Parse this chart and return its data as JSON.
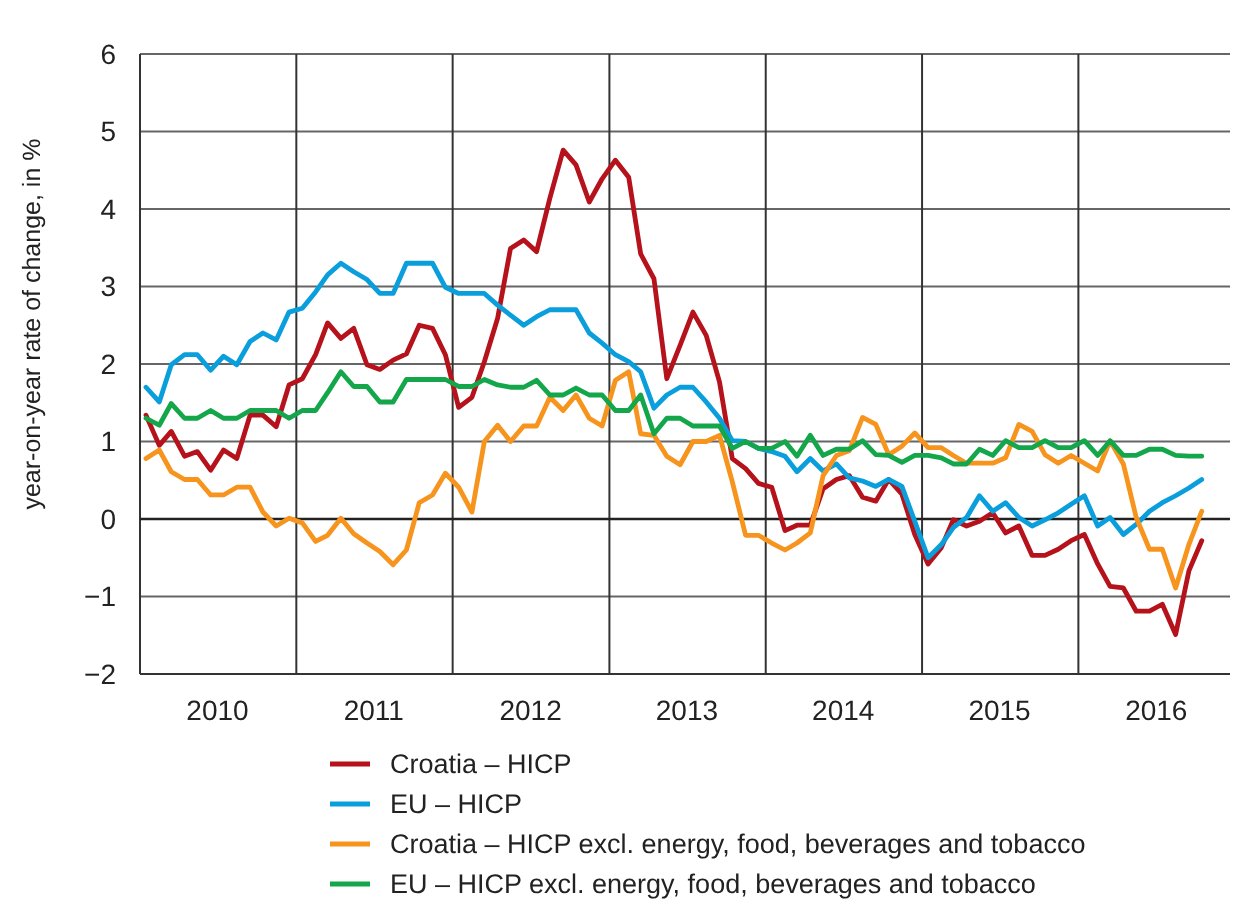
{
  "chart_data": {
    "type": "line",
    "ylabel": "year-on-year rate of change, in %",
    "x": [
      "2010-01-15",
      "2010-02-15",
      "2010-03-15",
      "2010-04-15",
      "2010-05-15",
      "2010-06-15",
      "2010-07-15",
      "2010-08-15",
      "2010-09-15",
      "2010-10-15",
      "2010-11-15",
      "2010-12-15",
      "2011-01-15",
      "2011-02-15",
      "2011-03-15",
      "2011-04-15",
      "2011-05-15",
      "2011-06-15",
      "2011-07-15",
      "2011-08-15",
      "2011-09-15",
      "2011-10-15",
      "2011-11-15",
      "2011-12-15",
      "2012-01-15",
      "2012-02-15",
      "2012-03-15",
      "2012-04-15",
      "2012-05-15",
      "2012-06-15",
      "2012-07-15",
      "2012-08-15",
      "2012-09-15",
      "2012-10-15",
      "2012-11-15",
      "2012-12-15",
      "2013-01-15",
      "2013-02-15",
      "2013-03-15",
      "2013-04-15",
      "2013-05-15",
      "2013-06-15",
      "2013-07-15",
      "2013-08-15",
      "2013-09-15",
      "2013-10-15",
      "2013-11-15",
      "2013-12-15",
      "2014-01-15",
      "2014-02-15",
      "2014-03-15",
      "2014-04-15",
      "2014-05-15",
      "2014-06-15",
      "2014-07-15",
      "2014-08-15",
      "2014-09-15",
      "2014-10-15",
      "2014-11-15",
      "2014-12-15",
      "2015-01-15",
      "2015-02-15",
      "2015-03-15",
      "2015-04-15",
      "2015-05-15",
      "2015-06-15",
      "2015-07-15",
      "2015-08-15",
      "2015-09-15",
      "2015-10-15",
      "2015-11-15",
      "2015-12-15",
      "2016-01-15",
      "2016-02-15",
      "2016-03-15",
      "2016-04-15",
      "2016-05-15",
      "2016-06-15",
      "2016-07-15",
      "2016-08-15",
      "2016-09-15",
      "2016-10-15"
    ],
    "xlim": [
      "2010-01-01",
      "2016-12-20"
    ],
    "xticks": [
      {
        "value": "2010-07-01",
        "label": "2010"
      },
      {
        "value": "2011-01-01",
        "label": null
      },
      {
        "value": "2011-07-01",
        "label": "2011"
      },
      {
        "value": "2012-01-01",
        "label": null
      },
      {
        "value": "2012-07-01",
        "label": "2012"
      },
      {
        "value": "2013-01-01",
        "label": null
      },
      {
        "value": "2013-07-01",
        "label": "2013"
      },
      {
        "value": "2014-01-01",
        "label": null
      },
      {
        "value": "2014-07-01",
        "label": "2014"
      },
      {
        "value": "2015-01-01",
        "label": null
      },
      {
        "value": "2015-07-01",
        "label": "2015"
      },
      {
        "value": "2016-01-01",
        "label": null
      },
      {
        "value": "2016-07-01",
        "label": "2016"
      }
    ],
    "ylim": [
      -2,
      6
    ],
    "yticks": [
      {
        "value": -2,
        "label": "−2"
      },
      {
        "value": -1,
        "label": "−1"
      },
      0,
      1,
      2,
      3,
      4,
      5,
      6
    ],
    "grid": true,
    "legend": "bottom",
    "marker": "none",
    "line_style": "solid",
    "series": [
      {
        "name": "Croatia – HICP",
        "color": "#b5121b",
        "values": [
          1.34,
          0.95,
          1.13,
          0.81,
          0.87,
          0.63,
          0.89,
          0.78,
          1.34,
          1.34,
          1.19,
          1.73,
          1.81,
          2.12,
          2.53,
          2.33,
          2.46,
          1.99,
          1.93,
          2.05,
          2.13,
          2.5,
          2.46,
          2.12,
          1.44,
          1.57,
          2.03,
          2.59,
          3.49,
          3.6,
          3.45,
          4.14,
          4.76,
          4.57,
          4.09,
          4.39,
          4.63,
          4.41,
          3.42,
          3.1,
          1.81,
          2.24,
          2.67,
          2.37,
          1.77,
          0.78,
          0.65,
          0.46,
          0.41,
          -0.15,
          -0.08,
          -0.08,
          0.39,
          0.51,
          0.56,
          0.28,
          0.23,
          0.51,
          0.32,
          -0.2,
          -0.58,
          -0.37,
          -0.01,
          -0.09,
          -0.03,
          0.08,
          -0.18,
          -0.09,
          -0.47,
          -0.47,
          -0.39,
          -0.28,
          -0.2,
          -0.58,
          -0.87,
          -0.89,
          -1.19,
          -1.19,
          -1.1,
          -1.49,
          -0.67,
          -0.28
        ]
      },
      {
        "name": "EU – HICP",
        "color": "#0a9fdc",
        "values": [
          1.7,
          1.51,
          1.99,
          2.12,
          2.12,
          1.92,
          2.1,
          1.99,
          2.29,
          2.4,
          2.31,
          2.67,
          2.72,
          2.93,
          3.15,
          3.3,
          3.19,
          3.09,
          2.91,
          2.91,
          3.3,
          3.3,
          3.3,
          2.99,
          2.91,
          2.91,
          2.91,
          2.76,
          2.63,
          2.5,
          2.61,
          2.7,
          2.7,
          2.7,
          2.4,
          2.27,
          2.12,
          2.03,
          1.9,
          1.43,
          1.6,
          1.7,
          1.7,
          1.51,
          1.3,
          1.01,
          1.0,
          0.91,
          0.87,
          0.81,
          0.61,
          0.78,
          0.62,
          0.71,
          0.53,
          0.49,
          0.42,
          0.51,
          0.42,
          -0.03,
          -0.5,
          -0.33,
          -0.11,
          0.02,
          0.3,
          0.1,
          0.21,
          0.02,
          -0.09,
          -0.01,
          0.08,
          0.19,
          0.3,
          -0.09,
          0.02,
          -0.2,
          -0.07,
          0.1,
          0.21,
          0.3,
          0.4,
          0.51
        ]
      },
      {
        "name": "Croatia – HICP excl. energy, food, beverages and tobacco",
        "color": "#f7941d",
        "values": [
          0.78,
          0.89,
          0.61,
          0.51,
          0.51,
          0.31,
          0.31,
          0.41,
          0.41,
          0.09,
          -0.09,
          0.01,
          -0.05,
          -0.29,
          -0.21,
          0.01,
          -0.19,
          -0.31,
          -0.42,
          -0.59,
          -0.4,
          0.21,
          0.31,
          0.59,
          0.41,
          0.09,
          1.0,
          1.21,
          1.0,
          1.2,
          1.2,
          1.57,
          1.4,
          1.6,
          1.3,
          1.2,
          1.79,
          1.9,
          1.1,
          1.08,
          0.81,
          0.7,
          1.0,
          1.0,
          1.08,
          0.48,
          -0.21,
          -0.21,
          -0.31,
          -0.4,
          -0.31,
          -0.18,
          0.56,
          0.82,
          0.88,
          1.31,
          1.22,
          0.83,
          0.94,
          1.11,
          0.92,
          0.92,
          0.82,
          0.72,
          0.72,
          0.72,
          0.79,
          1.22,
          1.13,
          0.83,
          0.72,
          0.82,
          0.72,
          0.62,
          1.01,
          0.71,
          0.02,
          -0.39,
          -0.39,
          -0.89,
          -0.33,
          0.1
        ]
      },
      {
        "name": "EU – HICP excl. energy, food, beverages and tobacco",
        "color": "#14a64a",
        "values": [
          1.3,
          1.21,
          1.49,
          1.3,
          1.3,
          1.4,
          1.3,
          1.3,
          1.4,
          1.4,
          1.4,
          1.3,
          1.4,
          1.4,
          1.63,
          1.9,
          1.71,
          1.71,
          1.51,
          1.51,
          1.8,
          1.8,
          1.8,
          1.8,
          1.71,
          1.71,
          1.8,
          1.73,
          1.7,
          1.7,
          1.79,
          1.6,
          1.6,
          1.69,
          1.6,
          1.6,
          1.4,
          1.4,
          1.6,
          1.1,
          1.3,
          1.3,
          1.2,
          1.2,
          1.2,
          0.91,
          1.0,
          0.91,
          0.91,
          1.0,
          0.81,
          1.08,
          0.82,
          0.9,
          0.9,
          1.01,
          0.83,
          0.82,
          0.73,
          0.82,
          0.82,
          0.79,
          0.71,
          0.71,
          0.9,
          0.82,
          1.01,
          0.92,
          0.92,
          1.01,
          0.92,
          0.92,
          1.01,
          0.82,
          1.01,
          0.82,
          0.82,
          0.9,
          0.9,
          0.82,
          0.81,
          0.81
        ]
      }
    ]
  }
}
